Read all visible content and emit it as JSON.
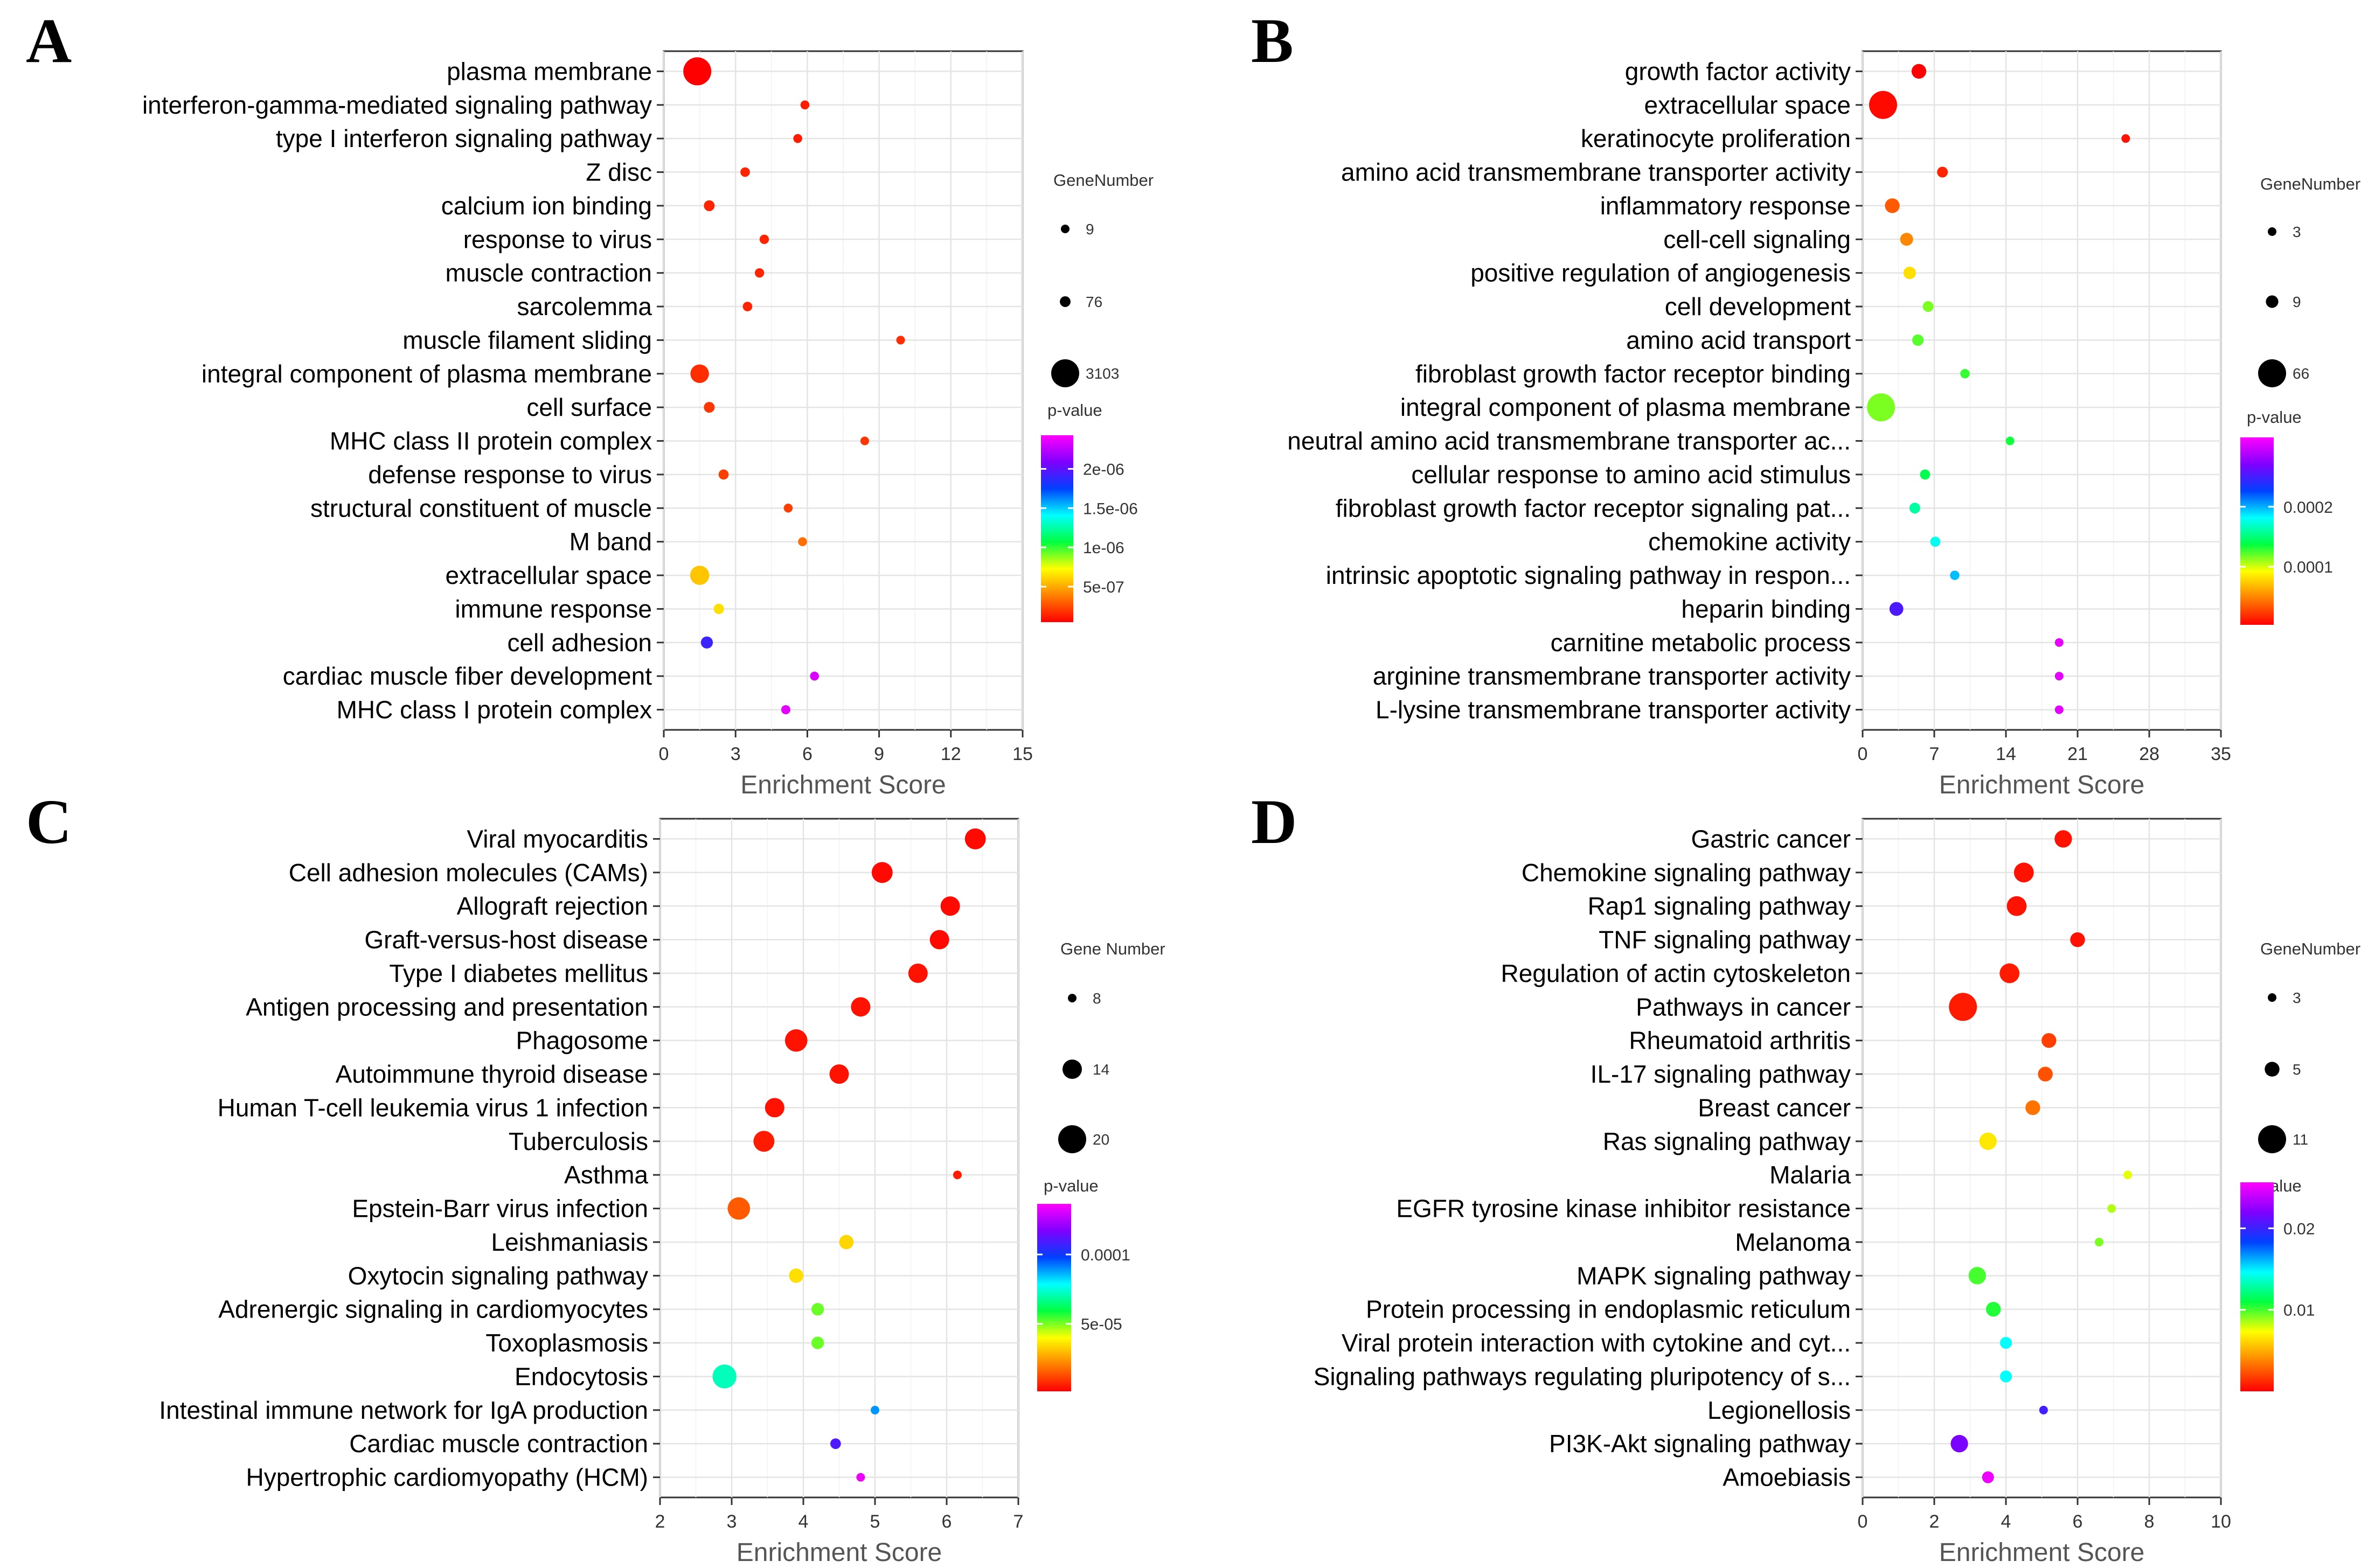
{
  "chart_data": [
    {
      "panel": "A",
      "type": "scatter",
      "xlabel": "Enrichment Score",
      "xlim": [
        0,
        15
      ],
      "xticks": [
        "0",
        "3",
        "6",
        "9",
        "12",
        "15"
      ],
      "size_legend": {
        "title": "GeneNumber",
        "entries": [
          {
            "label": "9",
            "value": 9
          },
          {
            "label": "76",
            "value": 76
          },
          {
            "label": "3103",
            "value": 3103
          }
        ]
      },
      "color_legend": {
        "title": "p-value",
        "ticks": [
          {
            "label": "2e-06",
            "pos": 0.82
          },
          {
            "label": "1.5e-06",
            "pos": 0.61
          },
          {
            "label": "1e-06",
            "pos": 0.4
          },
          {
            "label": "5e-07",
            "pos": 0.19
          }
        ]
      },
      "terms": [
        {
          "name": "plasma membrane",
          "x": 1.4,
          "size": 3103,
          "p": 0.0
        },
        {
          "name": "interferon-gamma-mediated signaling pathway",
          "x": 5.9,
          "size": 15,
          "p": 0.03
        },
        {
          "name": "type I interferon signaling pathway",
          "x": 5.6,
          "size": 15,
          "p": 0.03
        },
        {
          "name": "Z disc",
          "x": 3.4,
          "size": 30,
          "p": 0.04
        },
        {
          "name": "calcium ion binding",
          "x": 1.9,
          "size": 80,
          "p": 0.04
        },
        {
          "name": "response to virus",
          "x": 4.2,
          "size": 25,
          "p": 0.04
        },
        {
          "name": "muscle contraction",
          "x": 4.0,
          "size": 25,
          "p": 0.04
        },
        {
          "name": "sarcolemma",
          "x": 3.5,
          "size": 30,
          "p": 0.04
        },
        {
          "name": "muscle filament sliding",
          "x": 9.9,
          "size": 10,
          "p": 0.05
        },
        {
          "name": "integral component of plasma membrane",
          "x": 1.5,
          "size": 900,
          "p": 0.05
        },
        {
          "name": "cell surface",
          "x": 1.9,
          "size": 80,
          "p": 0.06
        },
        {
          "name": "MHC class II protein complex",
          "x": 8.4,
          "size": 10,
          "p": 0.06
        },
        {
          "name": "defense response to virus",
          "x": 2.5,
          "size": 50,
          "p": 0.07
        },
        {
          "name": "structural constituent of muscle",
          "x": 5.2,
          "size": 15,
          "p": 0.07
        },
        {
          "name": "M band",
          "x": 5.8,
          "size": 15,
          "p": 0.12
        },
        {
          "name": "extracellular space",
          "x": 1.5,
          "size": 1000,
          "p": 0.22
        },
        {
          "name": "immune response",
          "x": 2.3,
          "size": 60,
          "p": 0.25
        },
        {
          "name": "cell adhesion",
          "x": 1.8,
          "size": 150,
          "p": 0.78
        },
        {
          "name": "cardiac muscle fiber development",
          "x": 6.3,
          "size": 15,
          "p": 0.96
        },
        {
          "name": "MHC class I protein complex",
          "x": 5.1,
          "size": 20,
          "p": 0.97
        }
      ]
    },
    {
      "panel": "B",
      "type": "scatter",
      "xlabel": "Enrichment Score",
      "xlim": [
        0,
        35
      ],
      "xticks": [
        "0",
        "7",
        "14",
        "21",
        "28",
        "35"
      ],
      "size_legend": {
        "title": "GeneNumber",
        "entries": [
          {
            "label": "3",
            "value": 3
          },
          {
            "label": "9",
            "value": 9
          },
          {
            "label": "66",
            "value": 66
          }
        ]
      },
      "color_legend": {
        "title": "p-value",
        "ticks": [
          {
            "label": "0.0002",
            "pos": 0.63
          },
          {
            "label": "0.0001",
            "pos": 0.31
          }
        ]
      },
      "terms": [
        {
          "name": "growth factor activity",
          "x": 5.5,
          "size": 14,
          "p": 0.0
        },
        {
          "name": "extracellular space",
          "x": 2.0,
          "size": 66,
          "p": 0.01
        },
        {
          "name": "keratinocyte proliferation",
          "x": 25.7,
          "size": 3,
          "p": 0.02
        },
        {
          "name": "amino acid transmembrane transporter activity",
          "x": 7.8,
          "size": 6,
          "p": 0.04
        },
        {
          "name": "inflammatory response",
          "x": 2.9,
          "size": 14,
          "p": 0.1
        },
        {
          "name": "cell-cell signaling",
          "x": 4.3,
          "size": 10,
          "p": 0.15
        },
        {
          "name": "positive regulation of angiogenesis",
          "x": 4.6,
          "size": 9,
          "p": 0.25
        },
        {
          "name": "cell development",
          "x": 6.4,
          "size": 6,
          "p": 0.36
        },
        {
          "name": "amino acid transport",
          "x": 5.4,
          "size": 7,
          "p": 0.38
        },
        {
          "name": "fibroblast growth factor receptor binding",
          "x": 10.0,
          "size": 4,
          "p": 0.4
        },
        {
          "name": "integral component of plasma membrane",
          "x": 1.8,
          "size": 66,
          "p": 0.36
        },
        {
          "name": "neutral amino acid transmembrane transporter ac...",
          "x": 14.4,
          "size": 3,
          "p": 0.42
        },
        {
          "name": "cellular response to amino acid stimulus",
          "x": 6.1,
          "size": 5,
          "p": 0.44
        },
        {
          "name": "fibroblast growth factor receptor signaling pat...",
          "x": 5.1,
          "size": 6,
          "p": 0.5
        },
        {
          "name": "chemokine activity",
          "x": 7.1,
          "size": 5,
          "p": 0.56
        },
        {
          "name": "intrinsic apoptotic signaling pathway in respon...",
          "x": 9.0,
          "size": 4,
          "p": 0.62
        },
        {
          "name": "heparin binding",
          "x": 3.3,
          "size": 12,
          "p": 0.8
        },
        {
          "name": "carnitine metabolic process",
          "x": 19.2,
          "size": 3,
          "p": 0.97
        },
        {
          "name": "arginine transmembrane transporter activity",
          "x": 19.2,
          "size": 3,
          "p": 0.97
        },
        {
          "name": "L-lysine transmembrane transporter activity",
          "x": 19.2,
          "size": 3,
          "p": 0.97
        }
      ]
    },
    {
      "panel": "C",
      "type": "scatter",
      "xlabel": "Enrichment Score",
      "xlim": [
        2,
        7
      ],
      "xticks": [
        "2",
        "3",
        "4",
        "5",
        "6",
        "7"
      ],
      "size_legend": {
        "title": "Gene Number",
        "entries": [
          {
            "label": "8",
            "value": 8
          },
          {
            "label": "14",
            "value": 14
          },
          {
            "label": "20",
            "value": 20
          }
        ]
      },
      "color_legend": {
        "title": "p-value",
        "ticks": [
          {
            "label": "0.0001",
            "pos": 0.73
          },
          {
            "label": "5e-05",
            "pos": 0.36
          }
        ]
      },
      "terms": [
        {
          "name": "Viral myocarditis",
          "x": 6.4,
          "size": 15,
          "p": 0.01
        },
        {
          "name": "Cell adhesion molecules (CAMs)",
          "x": 5.1,
          "size": 15,
          "p": 0.01
        },
        {
          "name": "Allograft rejection",
          "x": 6.05,
          "size": 14,
          "p": 0.01
        },
        {
          "name": "Graft-versus-host disease",
          "x": 5.9,
          "size": 14,
          "p": 0.01
        },
        {
          "name": "Type I diabetes mellitus",
          "x": 5.6,
          "size": 14,
          "p": 0.02
        },
        {
          "name": "Antigen processing and presentation",
          "x": 4.8,
          "size": 14,
          "p": 0.02
        },
        {
          "name": "Phagosome",
          "x": 3.9,
          "size": 16,
          "p": 0.02
        },
        {
          "name": "Autoimmune thyroid disease",
          "x": 4.5,
          "size": 14,
          "p": 0.02
        },
        {
          "name": "Human T-cell leukemia virus 1 infection",
          "x": 3.6,
          "size": 14,
          "p": 0.02
        },
        {
          "name": "Tuberculosis",
          "x": 3.45,
          "size": 15,
          "p": 0.03
        },
        {
          "name": "Asthma",
          "x": 6.15,
          "size": 8,
          "p": 0.03
        },
        {
          "name": "Epstein-Barr virus infection",
          "x": 3.1,
          "size": 16,
          "p": 0.1
        },
        {
          "name": "Leishmaniasis",
          "x": 4.6,
          "size": 11,
          "p": 0.24
        },
        {
          "name": "Oxytocin signaling pathway",
          "x": 3.9,
          "size": 11,
          "p": 0.25
        },
        {
          "name": "Adrenergic signaling in cardiomyocytes",
          "x": 4.2,
          "size": 10,
          "p": 0.37
        },
        {
          "name": "Toxoplasmosis",
          "x": 4.2,
          "size": 10,
          "p": 0.37
        },
        {
          "name": "Endocytosis",
          "x": 2.9,
          "size": 17,
          "p": 0.52
        },
        {
          "name": "Intestinal immune network for IgA production",
          "x": 5.0,
          "size": 8,
          "p": 0.65
        },
        {
          "name": "Cardiac muscle contraction",
          "x": 4.45,
          "size": 9,
          "p": 0.8
        },
        {
          "name": "Hypertrophic cardiomyopathy (HCM)",
          "x": 4.8,
          "size": 8,
          "p": 0.98
        }
      ]
    },
    {
      "panel": "D",
      "type": "scatter",
      "xlabel": "Enrichment Score",
      "xlim": [
        0,
        10
      ],
      "xticks": [
        "0",
        "2",
        "4",
        "6",
        "8",
        "10"
      ],
      "size_legend": {
        "title": "GeneNumber",
        "entries": [
          {
            "label": "3",
            "value": 3
          },
          {
            "label": "5",
            "value": 5
          },
          {
            "label": "11",
            "value": 11
          }
        ]
      },
      "color_legend": {
        "title": "p-value",
        "ticks": [
          {
            "label": "0.02",
            "pos": 0.78
          },
          {
            "label": "0.01",
            "pos": 0.39
          }
        ]
      },
      "terms": [
        {
          "name": "Gastric cancer",
          "x": 5.6,
          "size": 6,
          "p": 0.02
        },
        {
          "name": "Chemokine signaling pathway",
          "x": 4.5,
          "size": 7,
          "p": 0.02
        },
        {
          "name": "Rap1 signaling pathway",
          "x": 4.3,
          "size": 7,
          "p": 0.02
        },
        {
          "name": "TNF signaling pathway",
          "x": 6.0,
          "size": 5,
          "p": 0.02
        },
        {
          "name": "Regulation of actin cytoskeleton",
          "x": 4.1,
          "size": 7,
          "p": 0.03
        },
        {
          "name": "Pathways in cancer",
          "x": 2.8,
          "size": 11,
          "p": 0.03
        },
        {
          "name": "Rheumatoid arthritis",
          "x": 5.2,
          "size": 5,
          "p": 0.07
        },
        {
          "name": "IL-17 signaling pathway",
          "x": 5.1,
          "size": 5,
          "p": 0.09
        },
        {
          "name": "Breast cancer",
          "x": 4.75,
          "size": 5,
          "p": 0.13
        },
        {
          "name": "Ras signaling pathway",
          "x": 3.5,
          "size": 6,
          "p": 0.26
        },
        {
          "name": "Malaria",
          "x": 7.4,
          "size": 3,
          "p": 0.3
        },
        {
          "name": "EGFR tyrosine kinase inhibitor resistance",
          "x": 6.95,
          "size": 3,
          "p": 0.33
        },
        {
          "name": "Melanoma",
          "x": 6.6,
          "size": 3,
          "p": 0.36
        },
        {
          "name": "MAPK signaling pathway",
          "x": 3.2,
          "size": 6,
          "p": 0.39
        },
        {
          "name": "Protein processing in endoplasmic reticulum",
          "x": 3.65,
          "size": 5,
          "p": 0.41
        },
        {
          "name": "Viral protein interaction with cytokine and cyt...",
          "x": 4.0,
          "size": 4,
          "p": 0.57
        },
        {
          "name": "Signaling pathways regulating pluripotency of s...",
          "x": 4.0,
          "size": 4,
          "p": 0.57
        },
        {
          "name": "Legionellosis",
          "x": 5.05,
          "size": 3,
          "p": 0.79
        },
        {
          "name": "PI3K-Akt signaling pathway",
          "x": 2.7,
          "size": 6,
          "p": 0.85
        },
        {
          "name": "Amoebiasis",
          "x": 3.5,
          "size": 4,
          "p": 0.98
        }
      ]
    }
  ]
}
